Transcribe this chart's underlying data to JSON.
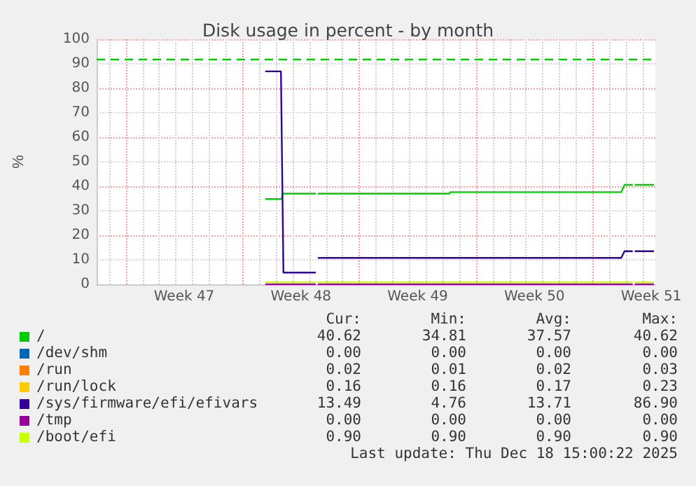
{
  "chart_data": {
    "type": "line",
    "title": "Disk usage in percent - by month",
    "ylabel": "%",
    "xlim": [
      "2025-11-15T06:00",
      "2025-12-18T18:00"
    ],
    "xticks": [
      {
        "value": "2025-11-17T00:00",
        "label": null
      },
      {
        "value": "2025-11-20T12:00",
        "label": "Week 47"
      },
      {
        "value": "2025-11-24T00:00",
        "label": null
      },
      {
        "value": "2025-11-27T12:00",
        "label": "Week 48"
      },
      {
        "value": "2025-12-01T00:00",
        "label": null
      },
      {
        "value": "2025-12-04T12:00",
        "label": "Week 49"
      },
      {
        "value": "2025-12-08T00:00",
        "label": null
      },
      {
        "value": "2025-12-11T12:00",
        "label": "Week 50"
      },
      {
        "value": "2025-12-15T00:00",
        "label": null
      },
      {
        "value": "2025-12-18T12:00",
        "label": "Week 51"
      }
    ],
    "ylim": [
      0,
      100
    ],
    "yticks": [
      0,
      10,
      20,
      30,
      40,
      50,
      60,
      70,
      80,
      90,
      100
    ],
    "grid": true,
    "legend": "bottom",
    "marker": "none",
    "line_style": "solid",
    "ref_lines": [
      {
        "axis": "y",
        "value": 92,
        "color": "#00cc00",
        "line_style": "dashed"
      }
    ],
    "series": [
      {
        "name": "/",
        "color": "#00cc00",
        "x": [
          "2025-11-25T09:36",
          "2025-11-26T08:24",
          "2025-11-26T09:36",
          "2025-11-28T08:24",
          "2025-11-28T10:48",
          "2025-11-28T13:12",
          "2025-12-06T09:36",
          "2025-12-06T10:48",
          "2025-12-16T16:48",
          "2025-12-16T21:36",
          "2025-12-17T08:24",
          "2025-12-17T10:48",
          "2025-12-17T13:12",
          "2025-12-18T15:00"
        ],
        "values": [
          34.8,
          34.8,
          37,
          37,
          null,
          37,
          37,
          37.6,
          37.6,
          40.6,
          40.6,
          null,
          40.6,
          40.6
        ]
      },
      {
        "name": "/dev/shm",
        "color": "#0066b3"
      },
      {
        "name": "/run",
        "color": "#ff8000"
      },
      {
        "name": "/run/lock",
        "color": "#ffcc00"
      },
      {
        "name": "/sys/firmware/efi/efivars",
        "color": "#330099",
        "x": [
          "2025-11-25T09:36",
          "2025-11-26T07:12",
          "2025-11-26T10:48",
          "2025-11-28T08:24",
          "2025-11-28T10:48",
          "2025-11-28T13:12",
          "2025-12-16T16:48",
          "2025-12-16T21:36",
          "2025-12-17T08:24",
          "2025-12-17T10:48",
          "2025-12-17T13:12",
          "2025-12-18T15:00"
        ],
        "values": [
          86.9,
          86.9,
          4.8,
          4.8,
          null,
          10.8,
          10.8,
          13.5,
          13.5,
          null,
          13.5,
          13.5
        ]
      },
      {
        "name": "/tmp",
        "color": "#990099",
        "x": [
          "2025-11-25T09:36",
          "2025-11-28T08:24",
          "2025-11-28T10:48",
          "2025-11-28T13:12",
          "2025-12-17T08:24",
          "2025-12-17T10:48",
          "2025-12-17T13:12",
          "2025-12-18T15:00"
        ],
        "values": [
          0,
          0,
          null,
          0,
          0,
          null,
          0,
          0
        ]
      },
      {
        "name": "/boot/efi",
        "color": "#ccff00",
        "x": [
          "2025-11-25T09:36",
          "2025-11-28T08:24",
          "2025-11-28T10:48",
          "2025-11-28T13:12",
          "2025-12-17T08:24",
          "2025-12-17T10:48",
          "2025-12-17T13:12",
          "2025-12-18T15:00"
        ],
        "values": [
          0.9,
          0.9,
          null,
          0.9,
          0.9,
          null,
          0.9,
          0.9
        ]
      }
    ],
    "annotations": [
      "Cur:",
      "Min:",
      "Avg:",
      "Max:",
      "40.62",
      "34.81",
      "37.57",
      "40.62",
      "0.00",
      "0.00",
      "0.00",
      "0.00",
      "0.02",
      "0.01",
      "0.02",
      "0.03",
      "0.16",
      "0.16",
      "0.17",
      "0.23",
      "13.49",
      "4.76",
      "13.71",
      "86.90",
      "0.00",
      "0.00",
      "0.00",
      "0.00",
      "0.90",
      "0.90",
      "0.90",
      "0.90",
      "Last update: Thu Dec 18 15:00:22 2025"
    ]
  }
}
